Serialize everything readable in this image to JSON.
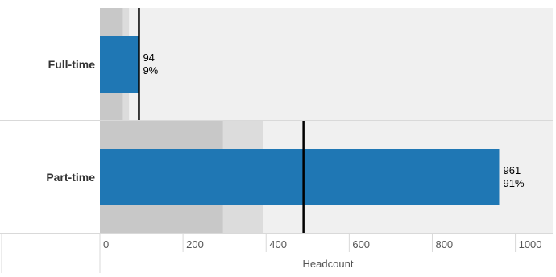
{
  "chart_data": {
    "type": "bar",
    "subtype": "bullet",
    "orientation": "horizontal",
    "categories": [
      "Full-time",
      "Part-time"
    ],
    "values": [
      94,
      961
    ],
    "percent_labels": [
      "9%",
      "91%"
    ],
    "targets": [
      94,
      490
    ],
    "bands": [
      {
        "band_1": 55,
        "band_2": 70
      },
      {
        "band_1": 296,
        "band_2": 393
      }
    ],
    "xlabel": "Headcount",
    "ylabel": "",
    "xlim": [
      0,
      1090
    ],
    "xticks": [
      0,
      200,
      400,
      600,
      800,
      1000
    ],
    "grid": false,
    "legend": "none",
    "colors": {
      "bar": "#1f77b4",
      "band_1": "#c8c8c8",
      "band_2": "#dcdcdc",
      "background": "#f0f0f0",
      "target": "#000000",
      "divider": "#d9d9d9"
    }
  }
}
